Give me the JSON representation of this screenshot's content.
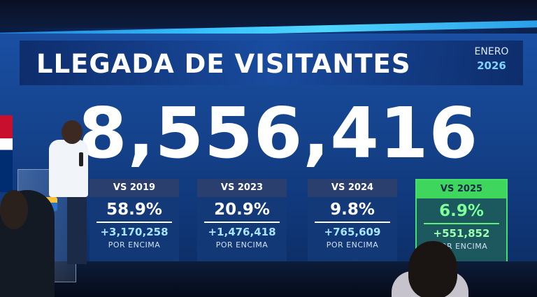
{
  "screen": {
    "title": "LLEGADA DE VISITANTES",
    "period_month": "ENERO",
    "period_year": "2026",
    "total_visitors": "8,556,416"
  },
  "comparisons": [
    {
      "label": "VS 2019",
      "percent": "58.9%",
      "delta": "+3,170,258",
      "note": "POR ENCIMA",
      "highlighted": false
    },
    {
      "label": "VS 2023",
      "percent": "20.9%",
      "delta": "+1,476,418",
      "note": "POR ENCIMA",
      "highlighted": false
    },
    {
      "label": "VS 2024",
      "percent": "9.8%",
      "delta": "+765,609",
      "note": "POR ENCIMA",
      "highlighted": false
    },
    {
      "label": "VS 2025",
      "percent": "6.9%",
      "delta": "+551,852",
      "note": "POR ENCIMA",
      "highlighted": true
    }
  ],
  "colors": {
    "screen_blue": "#164590",
    "accent_cyan": "#4fd7ff",
    "highlight_green": "#3fd65e",
    "card_header": "#2a3f6e"
  }
}
